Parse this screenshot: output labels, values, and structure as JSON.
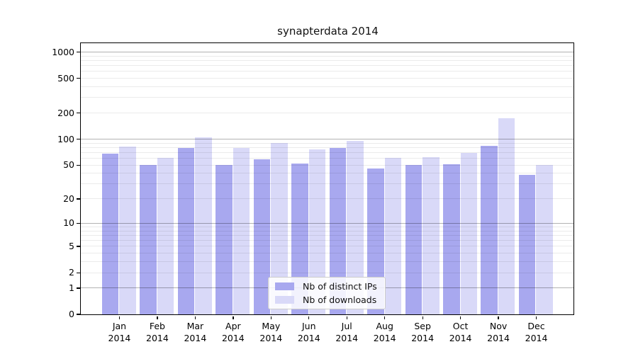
{
  "chart_data": {
    "type": "bar",
    "title": "synapterdata 2014",
    "categories": [
      "Jan",
      "Feb",
      "Mar",
      "Apr",
      "May",
      "Jun",
      "Jul",
      "Aug",
      "Sep",
      "Oct",
      "Nov",
      "Dec"
    ],
    "year": "2014",
    "series": [
      {
        "name": "Nb of distinct IPs",
        "color": "#a8a8ef",
        "values": [
          67,
          50,
          79,
          50,
          58,
          52,
          79,
          45,
          50,
          51,
          83,
          38
        ]
      },
      {
        "name": "Nb of downloads",
        "color": "#d9d9f8",
        "values": [
          82,
          60,
          103,
          79,
          90,
          75,
          94,
          60,
          61,
          69,
          172,
          50
        ]
      }
    ],
    "xlabel": "",
    "ylabel": "",
    "y_ticks": [
      0,
      1,
      2,
      5,
      10,
      20,
      50,
      100,
      200,
      500,
      1000
    ],
    "y_scale": "log1p",
    "ylim": [
      0,
      1240
    ],
    "grid": "horizontal major+minor, drawn over bars",
    "legend_position": "lower center",
    "colors": {
      "major_grid": "rgba(0,0,0,0.30)",
      "minor_grid": "rgba(0,0,0,0.08)",
      "spine": "#000000"
    }
  }
}
